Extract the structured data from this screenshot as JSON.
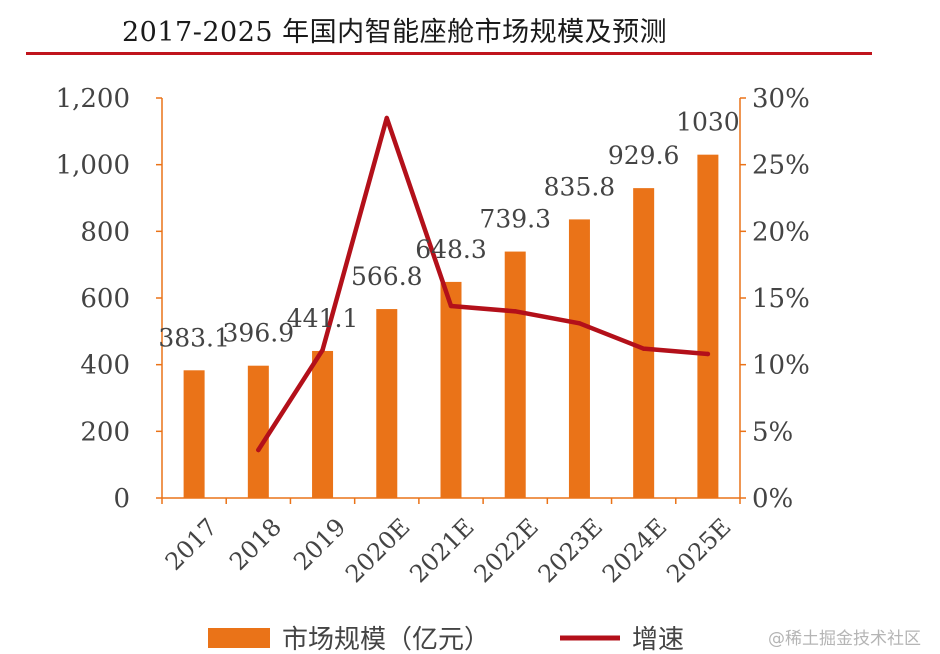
{
  "title": "2017-2025 年国内智能座舱市场规模及预测",
  "watermark": "@稀土掘金技术社区",
  "colors": {
    "bar": "#ea7318",
    "line": "#b3101a",
    "axis": "#ea7318",
    "title_rule": "#c0141c"
  },
  "chart_data": {
    "type": "bar+line",
    "title": "2017-2025 年国内智能座舱市场规模及预测",
    "categories": [
      "2017",
      "2018",
      "2019",
      "2020E",
      "2021E",
      "2022E",
      "2023E",
      "2024E",
      "2025E"
    ],
    "series": [
      {
        "name": "市场规模（亿元）",
        "type": "bar",
        "axis": "left",
        "values": [
          383.1,
          396.9,
          441.1,
          566.8,
          648.3,
          739.3,
          835.8,
          929.6,
          1030
        ],
        "labels": [
          "383.1",
          "396.9",
          "441.1",
          "566.8",
          "648.3",
          "739.3",
          "835.8",
          "929.6",
          "1030"
        ]
      },
      {
        "name": "增速",
        "type": "line",
        "axis": "right",
        "values": [
          null,
          3.6,
          11.1,
          28.5,
          14.4,
          14.0,
          13.1,
          11.2,
          10.8
        ]
      }
    ],
    "y_left": {
      "min": 0,
      "max": 1200,
      "ticks": [
        "0",
        "200",
        "400",
        "600",
        "800",
        "1,000",
        "1,200"
      ]
    },
    "y_right": {
      "min": 0,
      "max": 30,
      "ticks": [
        "0%",
        "5%",
        "10%",
        "15%",
        "20%",
        "25%",
        "30%"
      ]
    },
    "legend": {
      "position": "bottom",
      "items": [
        "市场规模（亿元）",
        "增速"
      ]
    }
  }
}
